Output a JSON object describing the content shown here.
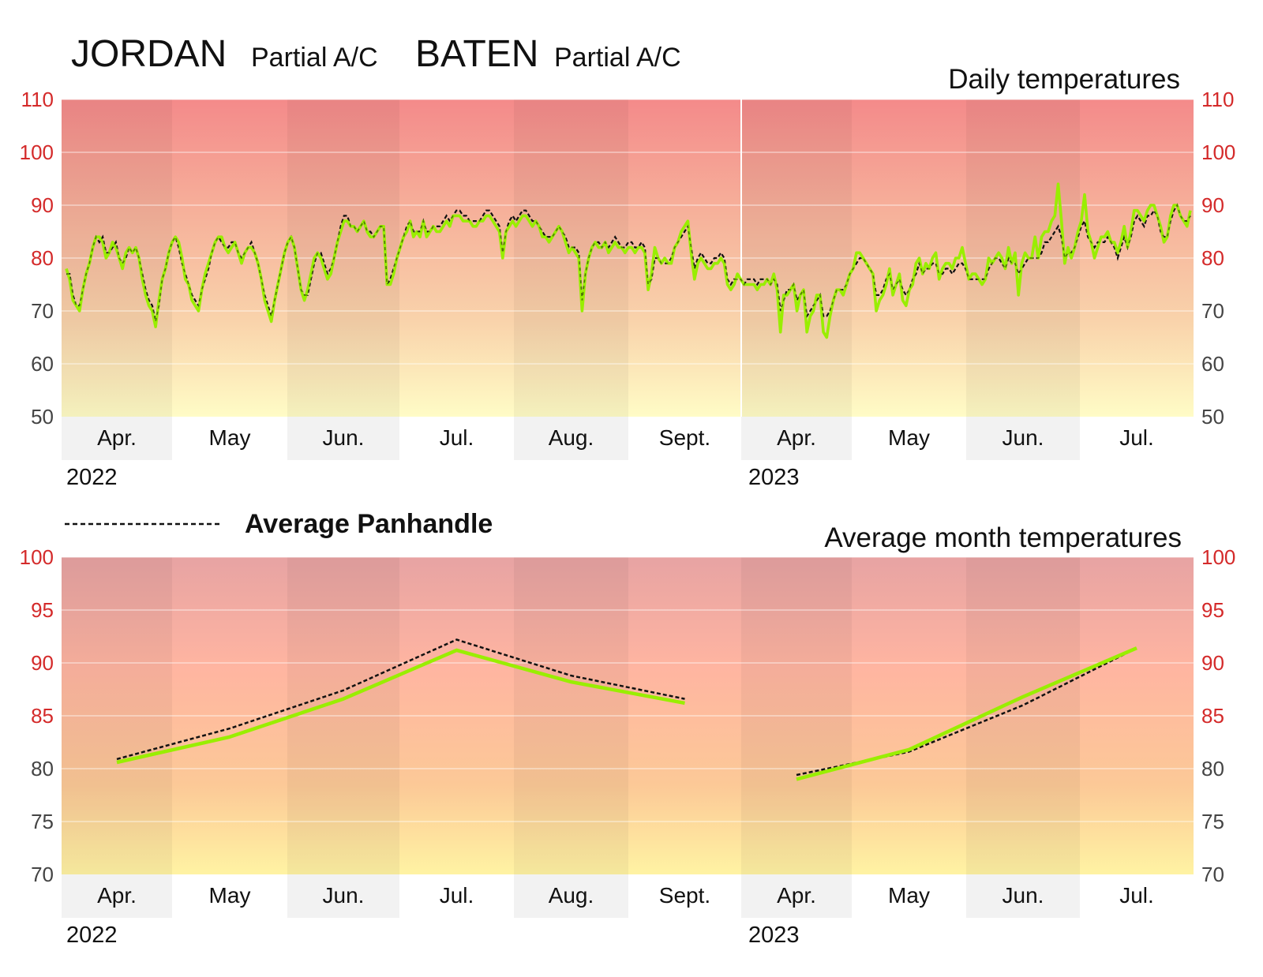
{
  "header": {
    "school_1": "JORDAN",
    "school_1_ac": "Partial A/C",
    "school_2": "BATEN",
    "school_2_ac": "Partial A/C"
  },
  "legend": {
    "label": "Average Panhandle"
  },
  "colors": {
    "school_line": "#99ee00",
    "average_line": "#111111",
    "warm_tick": "#d42a2a",
    "cool_tick": "#444444"
  },
  "chart_data": [
    {
      "type": "line",
      "title": "Daily temperatures",
      "ylim": [
        50,
        110
      ],
      "y_ticks": [
        50,
        60,
        70,
        80,
        90,
        100,
        110
      ],
      "months": [
        "Apr.",
        "May",
        "Jun.",
        "Jul.",
        "Aug.",
        "Sept.",
        "Apr.",
        "May",
        "Jun.",
        "Jul."
      ],
      "years": [
        "2022",
        "2023"
      ],
      "x_unit": "school day index",
      "series": [
        {
          "name": "JORDAN / BATEN",
          "style": "solid",
          "values": [
            78,
            76,
            72,
            71,
            70,
            74,
            77,
            79,
            82,
            84,
            84,
            83,
            80,
            81,
            83,
            82,
            80,
            78,
            81,
            82,
            81,
            82,
            80,
            76,
            73,
            71,
            70,
            67,
            72,
            76,
            78,
            81,
            83,
            84,
            83,
            80,
            76,
            75,
            72,
            71,
            70,
            74,
            77,
            79,
            81,
            83,
            84,
            84,
            82,
            81,
            82,
            83,
            81,
            79,
            81,
            82,
            82,
            81,
            79,
            76,
            72,
            70,
            68,
            72,
            75,
            78,
            81,
            83,
            84,
            82,
            78,
            74,
            72,
            74,
            77,
            80,
            81,
            80,
            78,
            76,
            77,
            80,
            83,
            85,
            87,
            87,
            86,
            86,
            85,
            86,
            87,
            85,
            84,
            84,
            85,
            86,
            86,
            75,
            75,
            77,
            80,
            82,
            84,
            85,
            87,
            84,
            85,
            84,
            87,
            84,
            85,
            86,
            85,
            85,
            86,
            87,
            86,
            88,
            88,
            88,
            87,
            87,
            87,
            86,
            86,
            87,
            87,
            88,
            88,
            87,
            86,
            85,
            80,
            85,
            86,
            87,
            86,
            87,
            88,
            88,
            87,
            86,
            87,
            86,
            84,
            84,
            83,
            84,
            85,
            86,
            85,
            83,
            81,
            82,
            81,
            80,
            70,
            77,
            80,
            82,
            83,
            82,
            82,
            83,
            81,
            82,
            83,
            82,
            82,
            81,
            82,
            82,
            81,
            82,
            82,
            81,
            74,
            77,
            82,
            80,
            79,
            80,
            79,
            79,
            82,
            83,
            85,
            86,
            87,
            81,
            76,
            79,
            80,
            79,
            78,
            78,
            79,
            79,
            80,
            79,
            75,
            74,
            75,
            77,
            76,
            75,
            75,
            75,
            75,
            74,
            75,
            75,
            76,
            75,
            77,
            74,
            66,
            73,
            73,
            74,
            75,
            70,
            73,
            74,
            66,
            69,
            70,
            73,
            73,
            66,
            65,
            69,
            72,
            74,
            74,
            73,
            75,
            77,
            78,
            81,
            81,
            80,
            79,
            78,
            77,
            70,
            72,
            73,
            75,
            78,
            73,
            75,
            77,
            72,
            71,
            74,
            75,
            79,
            80,
            77,
            79,
            78,
            80,
            81,
            76,
            78,
            79,
            79,
            78,
            80,
            80,
            82,
            79,
            76,
            77,
            77,
            76,
            75,
            76,
            80,
            79,
            80,
            81,
            80,
            78,
            82,
            79,
            81,
            73,
            79,
            81,
            80,
            80,
            84,
            80,
            84,
            85,
            85,
            87,
            88,
            94,
            87,
            79,
            82,
            80,
            82,
            85,
            87,
            92,
            85,
            83,
            80,
            82,
            84,
            84,
            85,
            83,
            83,
            81,
            83,
            86,
            82,
            85,
            89,
            89,
            88,
            87,
            89,
            90,
            90,
            88,
            86,
            83,
            84,
            88,
            90,
            90,
            88,
            87,
            86,
            89
          ]
        },
        {
          "name": "Average Panhandle",
          "style": "dashed",
          "values": [
            77,
            77,
            73,
            71,
            71,
            74,
            77,
            79,
            82,
            84,
            83,
            84,
            81,
            81,
            82,
            83,
            80,
            79,
            80,
            82,
            81,
            82,
            80,
            77,
            74,
            72,
            71,
            68,
            71,
            76,
            78,
            81,
            83,
            84,
            82,
            79,
            77,
            75,
            73,
            72,
            71,
            74,
            76,
            78,
            81,
            83,
            84,
            83,
            82,
            82,
            83,
            83,
            81,
            80,
            81,
            82,
            83,
            81,
            79,
            76,
            73,
            71,
            69,
            72,
            75,
            78,
            81,
            83,
            84,
            82,
            78,
            74,
            73,
            73,
            76,
            79,
            81,
            81,
            79,
            77,
            78,
            80,
            83,
            86,
            88,
            88,
            86,
            86,
            85,
            86,
            87,
            85,
            85,
            84,
            85,
            86,
            86,
            75,
            76,
            78,
            80,
            82,
            84,
            86,
            87,
            85,
            85,
            85,
            87,
            85,
            85,
            86,
            86,
            86,
            87,
            88,
            87,
            88,
            89,
            89,
            88,
            88,
            87,
            87,
            87,
            87,
            88,
            89,
            89,
            88,
            87,
            86,
            81,
            85,
            87,
            88,
            87,
            88,
            89,
            89,
            88,
            87,
            87,
            86,
            85,
            84,
            84,
            84,
            85,
            86,
            85,
            84,
            82,
            82,
            82,
            81,
            72,
            77,
            80,
            82,
            83,
            83,
            82,
            83,
            82,
            83,
            84,
            83,
            82,
            82,
            83,
            83,
            82,
            82,
            83,
            82,
            75,
            76,
            80,
            80,
            79,
            79,
            79,
            80,
            82,
            83,
            84,
            85,
            86,
            82,
            78,
            80,
            81,
            80,
            79,
            79,
            80,
            80,
            81,
            80,
            76,
            75,
            76,
            76,
            76,
            75,
            76,
            76,
            76,
            75,
            76,
            76,
            76,
            75,
            76,
            75,
            70,
            72,
            74,
            74,
            75,
            72,
            73,
            74,
            69,
            70,
            71,
            72,
            73,
            69,
            69,
            70,
            72,
            74,
            74,
            74,
            75,
            77,
            78,
            79,
            80,
            80,
            79,
            78,
            77,
            73,
            73,
            74,
            76,
            77,
            74,
            75,
            76,
            74,
            73,
            74,
            76,
            77,
            79,
            77,
            78,
            78,
            79,
            79,
            77,
            77,
            78,
            78,
            77,
            78,
            79,
            79,
            78,
            76,
            76,
            76,
            76,
            76,
            76,
            78,
            79,
            80,
            80,
            79,
            78,
            80,
            79,
            79,
            77,
            78,
            79,
            80,
            80,
            80,
            80,
            81,
            83,
            83,
            84,
            85,
            86,
            84,
            80,
            81,
            81,
            82,
            84,
            86,
            87,
            84,
            83,
            82,
            83,
            83,
            83,
            84,
            83,
            82,
            80,
            82,
            84,
            82,
            84,
            87,
            88,
            87,
            86,
            88,
            88,
            89,
            88,
            85,
            84,
            84,
            87,
            89,
            90,
            88,
            87,
            87,
            88
          ]
        }
      ]
    },
    {
      "type": "line",
      "title": "Average month temperatures",
      "ylim": [
        70,
        100
      ],
      "y_ticks": [
        70,
        75,
        80,
        85,
        90,
        95,
        100
      ],
      "months": [
        "Apr.",
        "May",
        "Jun.",
        "Jul.",
        "Aug.",
        "Sept.",
        "Apr.",
        "May",
        "Jun.",
        "Jul."
      ],
      "years": [
        "2022",
        "2023"
      ],
      "series": [
        {
          "name": "JORDAN / BATEN",
          "style": "solid",
          "values": [
            80.6,
            83.0,
            86.6,
            91.2,
            88.2,
            86.2,
            79.0,
            81.8,
            86.8,
            91.4
          ]
        },
        {
          "name": "Average Panhandle",
          "style": "dashed",
          "values": [
            80.9,
            83.8,
            87.4,
            92.2,
            88.8,
            86.6,
            79.4,
            81.6,
            86.0,
            91.4
          ]
        }
      ]
    }
  ]
}
